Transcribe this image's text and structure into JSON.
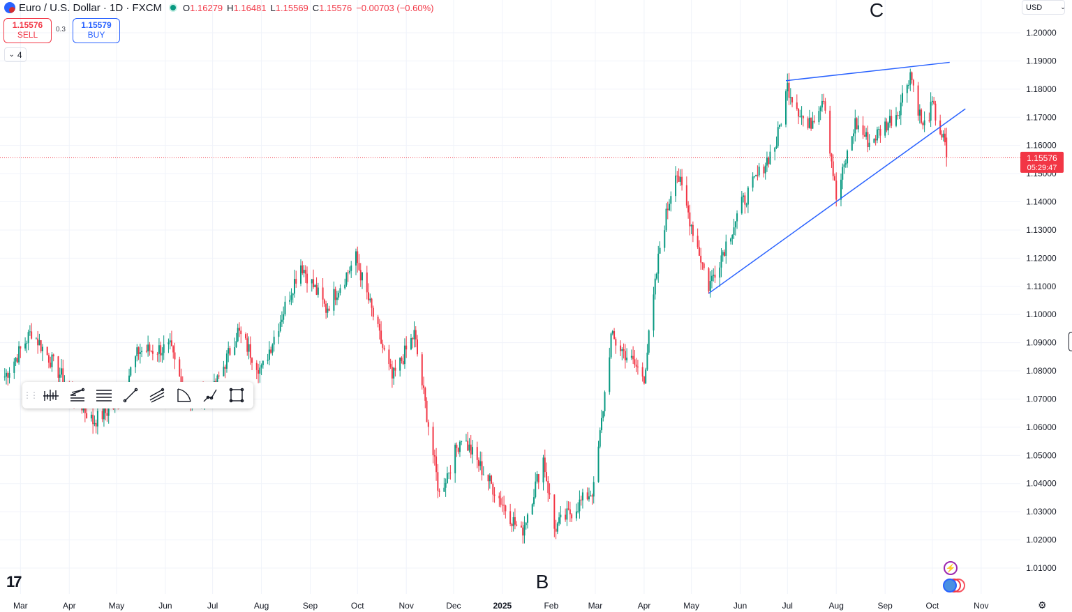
{
  "header": {
    "symbol": "Euro / U.S. Dollar · 1D · FXCM",
    "ohlc": {
      "o_label": "O",
      "o": "1.16279",
      "h_label": "H",
      "h": "1.16481",
      "l_label": "L",
      "l": "1.15569",
      "c_label": "C",
      "c": "1.15576"
    },
    "change": "−0.00703 (−0.60%)"
  },
  "trade": {
    "sell_price": "1.15576",
    "sell_label": "SELL",
    "spread": "0.3",
    "buy_price": "1.15579",
    "buy_label": "BUY"
  },
  "indicators_collapse": {
    "count": "4"
  },
  "currency_selector": "USD",
  "toolbar_icons": [
    "fib-retracement-icon",
    "pitchfork-icon",
    "parallel-channel-icon",
    "trend-line-icon",
    "regression-channel-icon",
    "arc-icon",
    "path-icon",
    "rectangle-icon"
  ],
  "annotations": {
    "label_b": "B",
    "label_c": "C"
  },
  "colors": {
    "up": "#089981",
    "down": "#f23645",
    "trendline": "#2962ff",
    "price_tag": "#f23645"
  },
  "price_tag": {
    "price": "1.15576",
    "countdown": "05:29:47"
  },
  "chart_data": {
    "type": "candlestick",
    "title": "Euro / U.S. Dollar · 1D · FXCM",
    "ylim": [
      1.0,
      1.205
    ],
    "y_ticks": [
      "1.20000",
      "1.19000",
      "1.18000",
      "1.17000",
      "1.16000",
      "1.15000",
      "1.14000",
      "1.13000",
      "1.12000",
      "1.11000",
      "1.10000",
      "1.09000",
      "1.08000",
      "1.07000",
      "1.06000",
      "1.05000",
      "1.04000",
      "1.03000",
      "1.02000",
      "1.01000"
    ],
    "x_ticks": [
      "Mar",
      "Apr",
      "May",
      "Jun",
      "Jul",
      "Aug",
      "Sep",
      "Oct",
      "Nov",
      "Dec",
      "2025",
      "Feb",
      "Mar",
      "Apr",
      "May",
      "Jun",
      "Jul",
      "Aug",
      "Sep",
      "Oct",
      "Nov"
    ],
    "last_price": 1.15576,
    "close_path": [
      [
        "2024-02-20",
        1.078
      ],
      [
        "2024-03-08",
        1.094
      ],
      [
        "2024-04-01",
        1.074
      ],
      [
        "2024-04-16",
        1.062
      ],
      [
        "2024-05-01",
        1.068
      ],
      [
        "2024-05-15",
        1.087
      ],
      [
        "2024-06-04",
        1.088
      ],
      [
        "2024-06-14",
        1.07
      ],
      [
        "2024-07-01",
        1.072
      ],
      [
        "2024-07-17",
        1.094
      ],
      [
        "2024-08-01",
        1.08
      ],
      [
        "2024-08-26",
        1.118
      ],
      [
        "2024-09-11",
        1.102
      ],
      [
        "2024-09-30",
        1.12
      ],
      [
        "2024-10-23",
        1.077
      ],
      [
        "2024-11-06",
        1.093
      ],
      [
        "2024-11-22",
        1.036
      ],
      [
        "2024-12-06",
        1.057
      ],
      [
        "2025-01-13",
        1.022
      ],
      [
        "2025-01-27",
        1.049
      ],
      [
        "2025-02-03",
        1.024
      ],
      [
        "2025-02-28",
        1.038
      ],
      [
        "2025-03-05",
        1.062
      ],
      [
        "2025-03-11",
        1.092
      ],
      [
        "2025-04-01",
        1.078
      ],
      [
        "2025-04-11",
        1.124
      ],
      [
        "2025-04-21",
        1.152
      ],
      [
        "2025-05-12",
        1.11
      ],
      [
        "2025-06-02",
        1.139
      ],
      [
        "2025-06-24",
        1.161
      ],
      [
        "2025-07-01",
        1.181
      ],
      [
        "2025-07-14",
        1.166
      ],
      [
        "2025-07-24",
        1.178
      ],
      [
        "2025-08-01",
        1.141
      ],
      [
        "2025-08-13",
        1.168
      ],
      [
        "2025-08-22",
        1.161
      ],
      [
        "2025-09-09",
        1.172
      ],
      [
        "2025-09-17",
        1.186
      ],
      [
        "2025-09-25",
        1.166
      ],
      [
        "2025-10-01",
        1.174
      ],
      [
        "2025-10-09",
        1.16
      ],
      [
        "2025-10-10",
        1.15576
      ]
    ],
    "drawings": {
      "upper_trendline": [
        [
          "2025-06-30",
          1.183
        ],
        [
          "2025-10-12",
          1.1895
        ]
      ],
      "lower_trendline": [
        [
          "2025-05-12",
          1.1075
        ],
        [
          "2025-10-22",
          1.173
        ]
      ]
    },
    "x_range": [
      "2024-02-17",
      "2025-11-25"
    ]
  }
}
